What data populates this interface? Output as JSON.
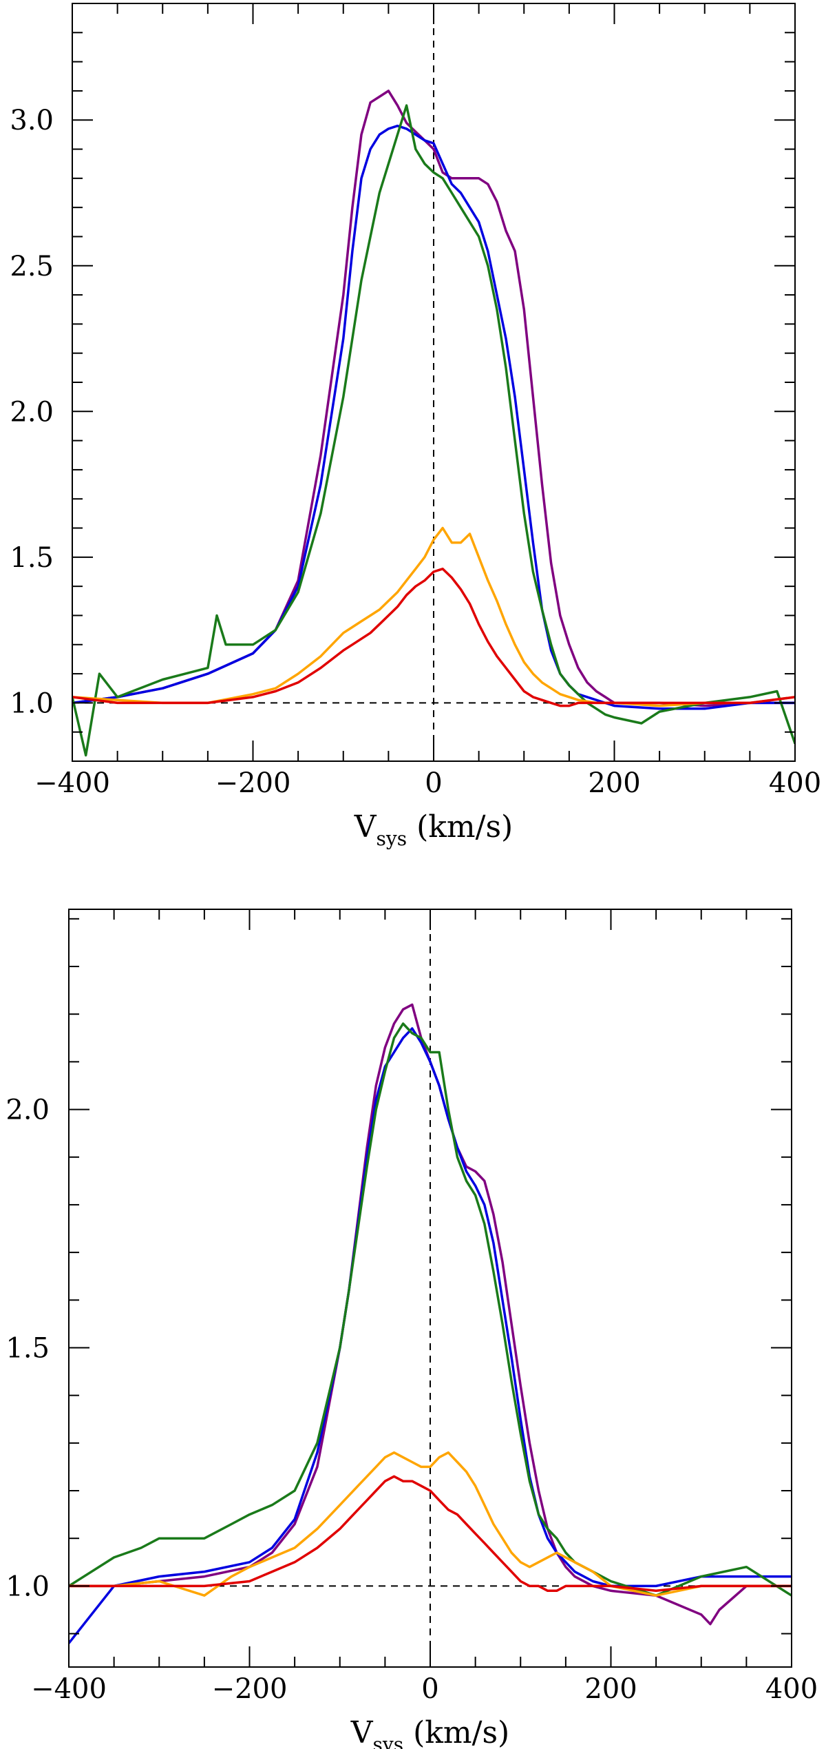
{
  "chart_data": [
    {
      "type": "line",
      "panel": "top",
      "xlabel_main": "V",
      "xlabel_sub": "sys",
      "xlabel_units": " (km/s)",
      "xlim": [
        -400,
        400
      ],
      "ylim": [
        0.8,
        3.4
      ],
      "xticks": [
        -400,
        -200,
        0,
        200,
        400
      ],
      "xtick_labels": [
        "−400",
        "−200",
        "0",
        "200",
        "400"
      ],
      "yticks": [
        1.0,
        1.5,
        2.0,
        2.5,
        3.0
      ],
      "ytick_labels": [
        "1.0",
        "1.5",
        "2.0",
        "2.5",
        "3.0"
      ],
      "reference_lines": {
        "x": 0,
        "y": 1.0
      },
      "series": [
        {
          "name": "purple",
          "color": "#800080",
          "x": [
            -400,
            -350,
            -300,
            -250,
            -200,
            -175,
            -150,
            -125,
            -100,
            -90,
            -80,
            -70,
            -60,
            -50,
            -40,
            -30,
            -20,
            -10,
            0,
            10,
            20,
            30,
            40,
            50,
            60,
            70,
            80,
            90,
            100,
            110,
            120,
            130,
            140,
            150,
            160,
            170,
            180,
            190,
            200,
            250,
            300,
            350,
            400
          ],
          "y": [
            1.0,
            1.02,
            1.05,
            1.1,
            1.17,
            1.25,
            1.42,
            1.85,
            2.4,
            2.7,
            2.95,
            3.06,
            3.08,
            3.1,
            3.05,
            2.99,
            2.96,
            2.93,
            2.9,
            2.82,
            2.8,
            2.8,
            2.8,
            2.8,
            2.78,
            2.72,
            2.62,
            2.55,
            2.35,
            2.05,
            1.75,
            1.48,
            1.3,
            1.2,
            1.12,
            1.07,
            1.04,
            1.02,
            1.0,
            1.0,
            0.99,
            1.0,
            1.0
          ]
        },
        {
          "name": "blue",
          "color": "#0000e0",
          "x": [
            -400,
            -350,
            -300,
            -250,
            -200,
            -175,
            -150,
            -125,
            -100,
            -90,
            -80,
            -70,
            -60,
            -50,
            -40,
            -30,
            -20,
            -10,
            0,
            10,
            20,
            30,
            40,
            50,
            60,
            70,
            80,
            90,
            100,
            110,
            120,
            130,
            140,
            150,
            160,
            170,
            180,
            190,
            200,
            250,
            300,
            350,
            400
          ],
          "y": [
            1.0,
            1.02,
            1.05,
            1.1,
            1.17,
            1.25,
            1.4,
            1.75,
            2.25,
            2.55,
            2.8,
            2.9,
            2.95,
            2.97,
            2.98,
            2.97,
            2.95,
            2.93,
            2.92,
            2.85,
            2.78,
            2.75,
            2.7,
            2.65,
            2.55,
            2.4,
            2.25,
            2.05,
            1.8,
            1.55,
            1.32,
            1.18,
            1.1,
            1.06,
            1.03,
            1.02,
            1.01,
            1.0,
            0.99,
            0.98,
            0.98,
            1.0,
            1.0
          ]
        },
        {
          "name": "green",
          "color": "#1a7a1a",
          "x": [
            -400,
            -385,
            -370,
            -350,
            -300,
            -250,
            -240,
            -230,
            -200,
            -175,
            -150,
            -125,
            -100,
            -90,
            -80,
            -70,
            -60,
            -50,
            -40,
            -30,
            -20,
            -10,
            0,
            10,
            20,
            30,
            40,
            50,
            60,
            70,
            80,
            90,
            100,
            110,
            120,
            130,
            140,
            150,
            160,
            170,
            180,
            190,
            200,
            230,
            250,
            300,
            350,
            380,
            400
          ],
          "y": [
            1.02,
            0.82,
            1.1,
            1.02,
            1.08,
            1.12,
            1.3,
            1.2,
            1.2,
            1.25,
            1.38,
            1.65,
            2.05,
            2.25,
            2.45,
            2.6,
            2.75,
            2.85,
            2.95,
            3.05,
            2.9,
            2.85,
            2.82,
            2.8,
            2.75,
            2.7,
            2.65,
            2.6,
            2.5,
            2.35,
            2.15,
            1.9,
            1.65,
            1.45,
            1.32,
            1.2,
            1.1,
            1.06,
            1.03,
            1.0,
            0.98,
            0.96,
            0.95,
            0.93,
            0.97,
            1.0,
            1.02,
            1.04,
            0.86
          ]
        },
        {
          "name": "orange",
          "color": "#ffa500",
          "x": [
            -400,
            -350,
            -300,
            -250,
            -200,
            -175,
            -150,
            -125,
            -100,
            -90,
            -80,
            -70,
            -60,
            -50,
            -40,
            -30,
            -20,
            -10,
            0,
            10,
            20,
            30,
            40,
            50,
            60,
            70,
            80,
            90,
            100,
            110,
            120,
            130,
            140,
            150,
            160,
            180,
            200,
            250,
            300,
            350,
            400
          ],
          "y": [
            1.02,
            1.01,
            1.0,
            1.0,
            1.03,
            1.05,
            1.1,
            1.16,
            1.24,
            1.26,
            1.28,
            1.3,
            1.32,
            1.35,
            1.38,
            1.42,
            1.46,
            1.5,
            1.56,
            1.6,
            1.55,
            1.55,
            1.58,
            1.5,
            1.42,
            1.35,
            1.27,
            1.2,
            1.14,
            1.1,
            1.07,
            1.05,
            1.03,
            1.02,
            1.01,
            1.0,
            1.0,
            0.99,
            1.0,
            1.0,
            1.02
          ]
        },
        {
          "name": "red",
          "color": "#e00000",
          "x": [
            -400,
            -350,
            -300,
            -250,
            -200,
            -175,
            -150,
            -125,
            -100,
            -90,
            -80,
            -70,
            -60,
            -50,
            -40,
            -30,
            -20,
            -10,
            0,
            10,
            20,
            30,
            40,
            50,
            60,
            70,
            80,
            90,
            100,
            110,
            120,
            130,
            140,
            150,
            160,
            180,
            200,
            250,
            300,
            350,
            400
          ],
          "y": [
            1.02,
            1.0,
            1.0,
            1.0,
            1.02,
            1.04,
            1.07,
            1.12,
            1.18,
            1.2,
            1.22,
            1.24,
            1.27,
            1.3,
            1.33,
            1.37,
            1.4,
            1.42,
            1.45,
            1.46,
            1.43,
            1.39,
            1.34,
            1.27,
            1.21,
            1.16,
            1.12,
            1.08,
            1.04,
            1.02,
            1.01,
            1.0,
            0.99,
            0.99,
            1.0,
            1.0,
            1.0,
            1.0,
            1.0,
            1.0,
            1.02
          ]
        }
      ]
    },
    {
      "type": "line",
      "panel": "bottom",
      "xlabel_main": "V",
      "xlabel_sub": "sys",
      "xlabel_units": " (km/s)",
      "xlim": [
        -400,
        400
      ],
      "ylim": [
        0.83,
        2.42
      ],
      "xticks": [
        -400,
        -200,
        0,
        200,
        400
      ],
      "xtick_labels": [
        "−400",
        "−200",
        "0",
        "200",
        "400"
      ],
      "yticks": [
        1.0,
        1.5,
        2.0
      ],
      "ytick_labels": [
        "1.0",
        "1.5",
        "2.0"
      ],
      "reference_lines": {
        "x": 0,
        "y": 1.0
      },
      "series": [
        {
          "name": "purple",
          "color": "#800080",
          "x": [
            -400,
            -350,
            -300,
            -250,
            -200,
            -175,
            -150,
            -125,
            -100,
            -90,
            -80,
            -70,
            -60,
            -50,
            -40,
            -30,
            -20,
            -10,
            0,
            10,
            20,
            30,
            40,
            50,
            60,
            70,
            80,
            90,
            100,
            110,
            120,
            130,
            140,
            150,
            160,
            180,
            200,
            250,
            300,
            310,
            320,
            350,
            400
          ],
          "y": [
            1.0,
            1.0,
            1.01,
            1.02,
            1.04,
            1.07,
            1.13,
            1.25,
            1.5,
            1.62,
            1.77,
            1.92,
            2.05,
            2.13,
            2.18,
            2.21,
            2.22,
            2.15,
            2.1,
            2.05,
            1.98,
            1.92,
            1.88,
            1.87,
            1.85,
            1.78,
            1.68,
            1.55,
            1.42,
            1.3,
            1.2,
            1.12,
            1.07,
            1.04,
            1.02,
            1.0,
            0.99,
            0.98,
            0.94,
            0.92,
            0.95,
            1.0,
            1.0
          ]
        },
        {
          "name": "blue",
          "color": "#0000e0",
          "x": [
            -400,
            -350,
            -300,
            -250,
            -200,
            -175,
            -150,
            -125,
            -100,
            -90,
            -80,
            -70,
            -60,
            -50,
            -40,
            -30,
            -20,
            -10,
            0,
            10,
            20,
            30,
            40,
            50,
            60,
            70,
            80,
            90,
            100,
            110,
            120,
            130,
            140,
            150,
            160,
            180,
            200,
            250,
            300,
            350,
            400
          ],
          "y": [
            0.88,
            1.0,
            1.02,
            1.03,
            1.05,
            1.08,
            1.14,
            1.28,
            1.5,
            1.62,
            1.76,
            1.9,
            2.02,
            2.09,
            2.12,
            2.15,
            2.17,
            2.14,
            2.1,
            2.05,
            1.98,
            1.92,
            1.87,
            1.84,
            1.8,
            1.72,
            1.6,
            1.48,
            1.35,
            1.23,
            1.15,
            1.1,
            1.07,
            1.05,
            1.03,
            1.01,
            1.0,
            1.0,
            1.02,
            1.02,
            1.02
          ]
        },
        {
          "name": "green",
          "color": "#1a7a1a",
          "x": [
            -400,
            -350,
            -320,
            -300,
            -250,
            -220,
            -200,
            -175,
            -150,
            -125,
            -100,
            -90,
            -80,
            -70,
            -60,
            -50,
            -40,
            -30,
            -20,
            -10,
            0,
            10,
            20,
            30,
            40,
            50,
            60,
            70,
            80,
            90,
            100,
            110,
            120,
            130,
            140,
            150,
            160,
            180,
            200,
            250,
            300,
            350,
            400
          ],
          "y": [
            1.0,
            1.06,
            1.08,
            1.1,
            1.1,
            1.13,
            1.15,
            1.17,
            1.2,
            1.3,
            1.5,
            1.62,
            1.75,
            1.88,
            2.0,
            2.08,
            2.15,
            2.18,
            2.16,
            2.15,
            2.12,
            2.12,
            2.0,
            1.9,
            1.85,
            1.82,
            1.76,
            1.66,
            1.55,
            1.43,
            1.32,
            1.22,
            1.15,
            1.12,
            1.1,
            1.07,
            1.05,
            1.03,
            1.01,
            0.98,
            1.02,
            1.04,
            0.98
          ]
        },
        {
          "name": "orange",
          "color": "#ffa500",
          "x": [
            -400,
            -350,
            -300,
            -250,
            -220,
            -200,
            -175,
            -150,
            -125,
            -100,
            -90,
            -80,
            -70,
            -60,
            -50,
            -40,
            -30,
            -20,
            -10,
            0,
            10,
            20,
            30,
            40,
            50,
            60,
            70,
            80,
            90,
            100,
            110,
            120,
            130,
            140,
            150,
            160,
            180,
            200,
            250,
            300,
            350,
            400
          ],
          "y": [
            1.0,
            1.0,
            1.01,
            0.98,
            1.02,
            1.04,
            1.06,
            1.08,
            1.12,
            1.17,
            1.19,
            1.21,
            1.23,
            1.25,
            1.27,
            1.28,
            1.27,
            1.26,
            1.25,
            1.25,
            1.27,
            1.28,
            1.26,
            1.24,
            1.21,
            1.17,
            1.13,
            1.1,
            1.07,
            1.05,
            1.04,
            1.05,
            1.06,
            1.07,
            1.06,
            1.05,
            1.03,
            1.0,
            0.98,
            1.0,
            1.0,
            1.0
          ]
        },
        {
          "name": "red",
          "color": "#e00000",
          "x": [
            -400,
            -350,
            -300,
            -250,
            -200,
            -175,
            -150,
            -125,
            -100,
            -90,
            -80,
            -70,
            -60,
            -50,
            -40,
            -30,
            -20,
            -10,
            0,
            10,
            20,
            30,
            40,
            50,
            60,
            70,
            80,
            90,
            100,
            110,
            120,
            130,
            140,
            150,
            160,
            180,
            200,
            250,
            300,
            350,
            400
          ],
          "y": [
            1.0,
            1.0,
            1.0,
            1.0,
            1.01,
            1.03,
            1.05,
            1.08,
            1.12,
            1.14,
            1.16,
            1.18,
            1.2,
            1.22,
            1.23,
            1.22,
            1.22,
            1.21,
            1.2,
            1.18,
            1.16,
            1.15,
            1.13,
            1.11,
            1.09,
            1.07,
            1.05,
            1.03,
            1.01,
            1.0,
            1.0,
            0.99,
            0.99,
            1.0,
            1.0,
            1.0,
            1.0,
            0.99,
            1.0,
            1.0,
            1.0
          ]
        }
      ]
    }
  ]
}
